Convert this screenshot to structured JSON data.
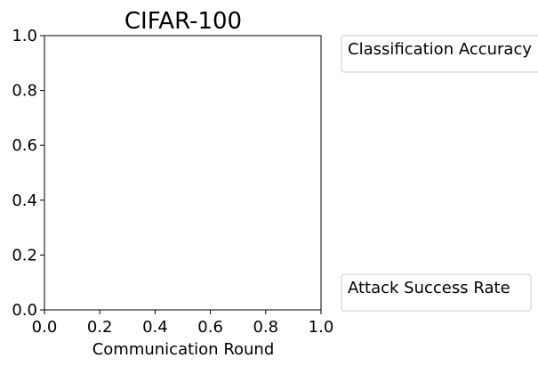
{
  "chart_data": {
    "type": "line",
    "title": "CIFAR-100",
    "xlabel": "Communication Round",
    "ylabel": "",
    "xlim": [
      0.0,
      1.0
    ],
    "ylim": [
      0.0,
      1.0
    ],
    "x_ticks": [
      "0.0",
      "0.2",
      "0.4",
      "0.6",
      "0.8",
      "1.0"
    ],
    "y_ticks": [
      "0.0",
      "0.2",
      "0.4",
      "0.6",
      "0.8",
      "1.0"
    ],
    "grid": false,
    "series": []
  },
  "legends": {
    "top": "Classification Accuracy",
    "bottom": "Attack Success Rate"
  }
}
